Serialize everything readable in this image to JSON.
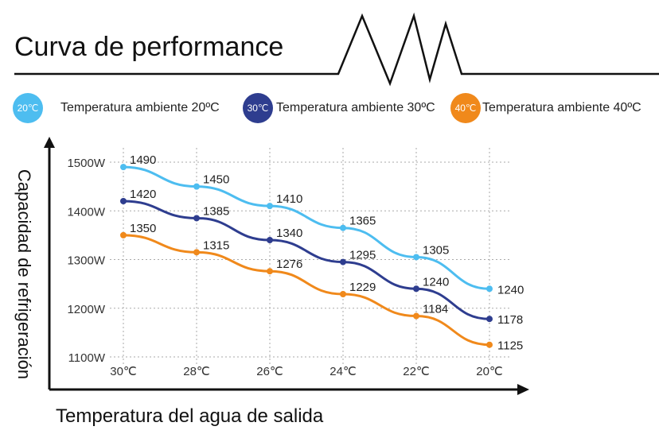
{
  "title": "Curva de performance",
  "legend": [
    {
      "badge": "20℃",
      "label": "Temperatura ambiente 20ºC",
      "color": "#4dbdf0"
    },
    {
      "badge": "30℃",
      "label": "Temperatura ambiente 30ºC",
      "color": "#2e3d8f"
    },
    {
      "badge": "40℃",
      "label": "Temperatura ambiente 40ºC",
      "color": "#f0891b"
    }
  ],
  "chart_data": {
    "type": "line",
    "xlabel": "Temperatura del agua de salida",
    "ylabel": "Capacidad de refrigeración",
    "categories": [
      "30℃",
      "28℃",
      "26℃",
      "24℃",
      "22℃",
      "20℃"
    ],
    "yticks": [
      "1100W",
      "1200W",
      "1300W",
      "1400W",
      "1500W"
    ],
    "ylim": [
      1100,
      1500
    ],
    "grid": true,
    "series": [
      {
        "name": "Temperatura ambiente 20ºC",
        "color": "#4dbdf0",
        "values": [
          1490,
          1450,
          1410,
          1365,
          1305,
          1240
        ]
      },
      {
        "name": "Temperatura ambiente 30ºC",
        "color": "#2e3d8f",
        "values": [
          1420,
          1385,
          1340,
          1295,
          1240,
          1178
        ]
      },
      {
        "name": "Temperatura ambiente 40ºC",
        "color": "#f0891b",
        "values": [
          1350,
          1315,
          1276,
          1229,
          1184,
          1125
        ]
      }
    ]
  }
}
